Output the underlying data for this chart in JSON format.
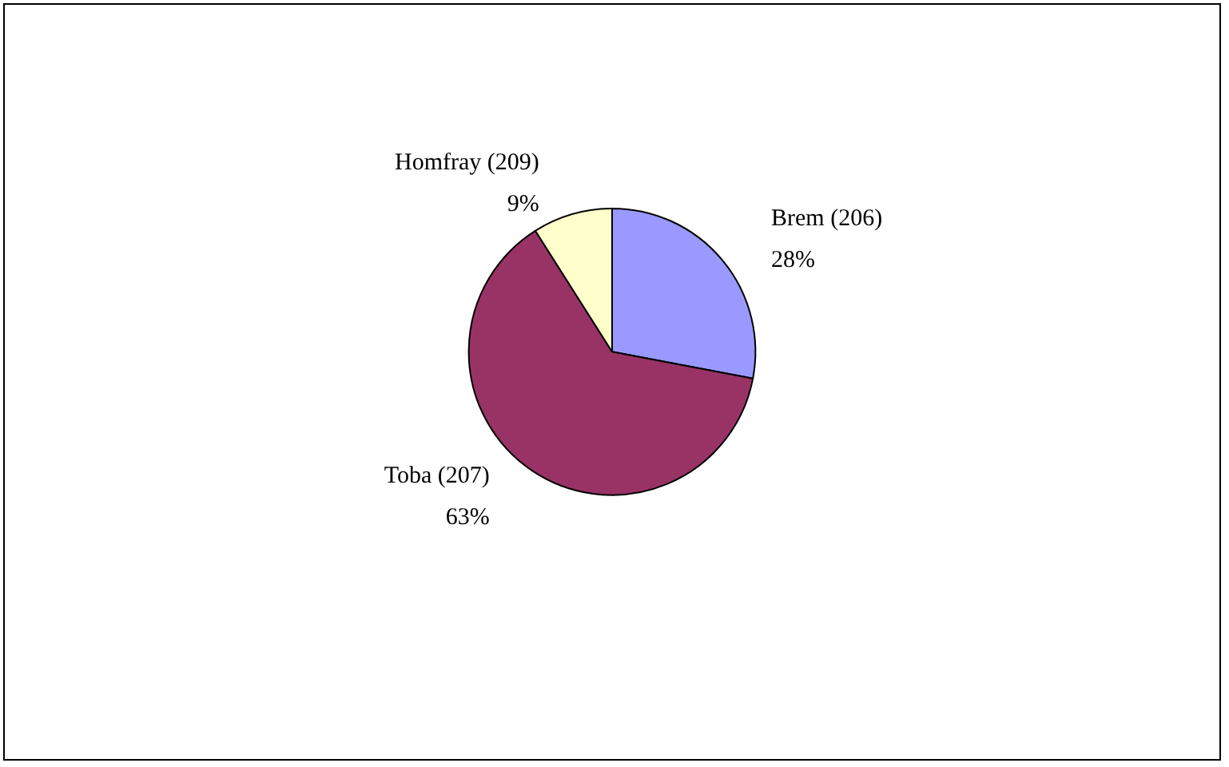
{
  "chart_data": {
    "type": "pie",
    "categories": [
      "Brem (206)",
      "Toba (207)",
      "Homfray (209)"
    ],
    "values": [
      28,
      63,
      9
    ],
    "value_labels": [
      "28%",
      "63%",
      "9%"
    ],
    "colors": [
      "#9999ff",
      "#993366",
      "#ffffcc"
    ],
    "legend": false
  }
}
